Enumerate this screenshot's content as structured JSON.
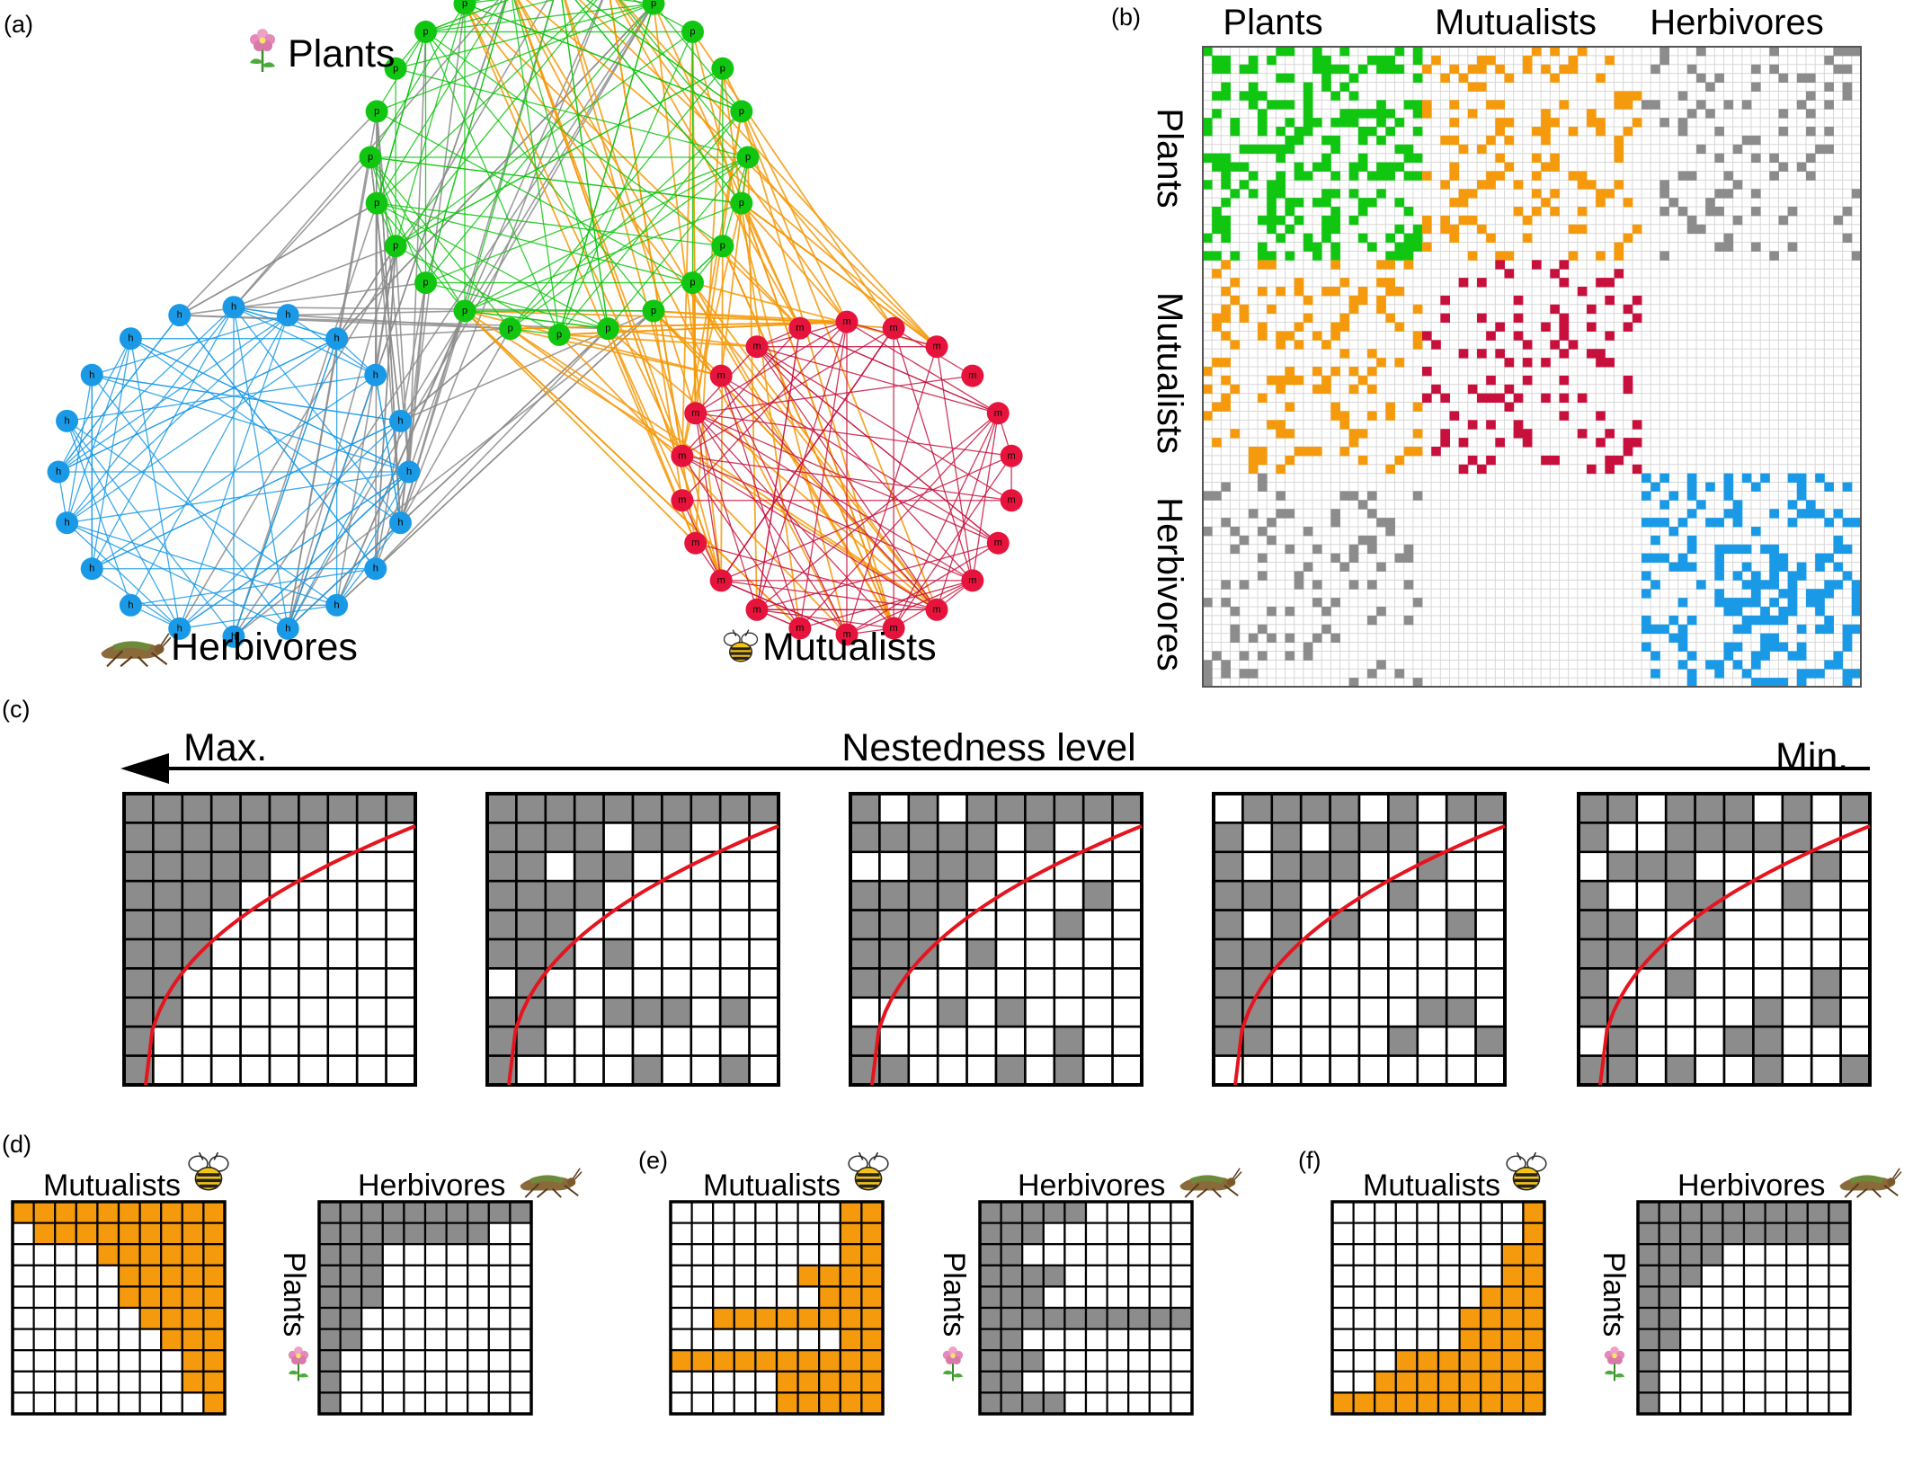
{
  "panel_letters": [
    "(a)",
    "(b)",
    "(c)",
    "(d)",
    "(e)",
    "(f)"
  ],
  "network": {
    "groups": [
      {
        "key": "plants",
        "label": "Plants",
        "node_letter": "p",
        "node_count": 24,
        "color": "#11c611"
      },
      {
        "key": "herbivores",
        "label": "Herbivores",
        "node_letter": "h",
        "node_count": 20,
        "color": "#1a9ae6"
      },
      {
        "key": "mutualists",
        "label": "Mutualists",
        "node_letter": "m",
        "node_count": 22,
        "color": "#e6143c"
      }
    ],
    "link_colors": {
      "plant_plant": "#11c611",
      "herbivore_herbivore": "#1a9ae6",
      "mutualist_mutualist": "#c81440",
      "plant_herbivore": "#8c8c8c",
      "plant_mutualist": "#f59a0c"
    }
  },
  "adjacency": {
    "block_labels": [
      "Plants",
      "Mutualists",
      "Herbivores"
    ],
    "block_sizes": 24,
    "block_colors": {
      "plants": "#11c611",
      "mutualists": "#c8103c",
      "herbivores": "#1a9ae6",
      "plant_mutualist": "#f59a0c",
      "plant_herbivore": "#8c8c8c"
    }
  },
  "nestedness": {
    "axis_label": "Nestedness level",
    "max_label": "Max.",
    "min_label": "Min.",
    "grid_size": 10,
    "curve_color": "#e6141e",
    "filled_color": "#8c8c8c"
  },
  "scenarios": [
    {
      "id": "d",
      "left_label": "Mutualists",
      "right_label": "Herbivores",
      "row_label": "Plants",
      "left_color": "#f59a0c",
      "right_color": "#8c8c8c"
    },
    {
      "id": "e",
      "left_label": "Mutualists",
      "right_label": "Herbivores",
      "row_label": "Plants",
      "left_color": "#f59a0c",
      "right_color": "#8c8c8c"
    },
    {
      "id": "f",
      "left_label": "Mutualists",
      "right_label": "Herbivores",
      "row_label": "Plants",
      "left_color": "#f59a0c",
      "right_color": "#8c8c8c"
    }
  ],
  "icons": [
    "flower-icon",
    "grasshopper-icon",
    "bee-icon"
  ]
}
